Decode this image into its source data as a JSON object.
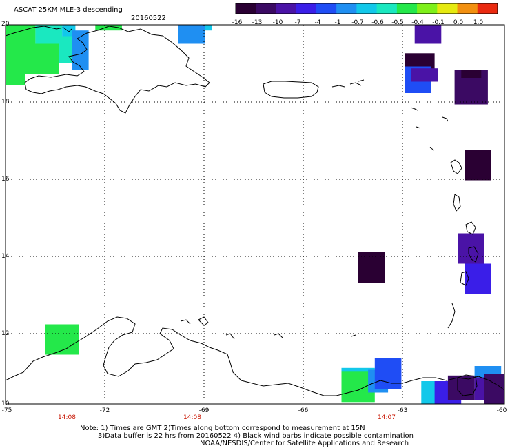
{
  "header": {
    "title": "ASCAT 25KM MLE-3 descending",
    "date": "20160522"
  },
  "colorbar": {
    "labels": [
      "-16",
      "-13",
      "-10",
      "-7",
      "-4",
      "-1",
      "-0.7",
      "-0.6",
      "-0.5",
      "-0.4",
      "-0.1",
      "0.0",
      "1.0"
    ],
    "colors": [
      "#2a0033",
      "#3b0a63",
      "#4a13a6",
      "#3a1ee8",
      "#1f4df5",
      "#1f8ff2",
      "#12c8ea",
      "#1ae8c0",
      "#24e84a",
      "#7ef01a",
      "#e6ea10",
      "#f29010",
      "#ea2a10"
    ]
  },
  "map": {
    "lat_labels": [
      "20",
      "18",
      "16",
      "14",
      "12",
      "10"
    ],
    "lon_labels": [
      "-75",
      "-72",
      "-69",
      "-66",
      "-63",
      "-60"
    ],
    "time_labels": [
      "14:08",
      "14:08",
      "14:07"
    ],
    "cells": [
      {
        "lon0": -75.0,
        "lon1": -74.1,
        "lat0": 19.3,
        "lat1": 20.0,
        "color": "#24e84a"
      },
      {
        "lon0": -74.1,
        "lon1": -73.3,
        "lat0": 19.5,
        "lat1": 20.0,
        "color": "#1ae8c0"
      },
      {
        "lon0": -73.3,
        "lon1": -72.9,
        "lat0": 19.7,
        "lat1": 20.0,
        "color": "#12c8ea"
      },
      {
        "lon0": -75.0,
        "lon1": -74.4,
        "lat0": 18.4,
        "lat1": 19.3,
        "color": "#24e84a"
      },
      {
        "lon0": -74.4,
        "lon1": -73.4,
        "lat0": 18.7,
        "lat1": 19.5,
        "color": "#24e84a"
      },
      {
        "lon0": -73.4,
        "lon1": -73.0,
        "lat0": 19.0,
        "lat1": 19.7,
        "color": "#1ae8c0"
      },
      {
        "lon0": -73.0,
        "lon1": -72.5,
        "lat0": 18.8,
        "lat1": 19.85,
        "color": "#1f8ff2"
      },
      {
        "lon0": -72.3,
        "lon1": -71.5,
        "lat0": 19.85,
        "lat1": 20.0,
        "color": "#24e84a"
      },
      {
        "lon0": -69.8,
        "lon1": -69.0,
        "lat0": 19.5,
        "lat1": 20.0,
        "color": "#1f8ff2"
      },
      {
        "lon0": -69.0,
        "lon1": -68.8,
        "lat0": 19.85,
        "lat1": 20.0,
        "color": "#12c8ea"
      },
      {
        "lon0": -62.7,
        "lon1": -61.9,
        "lat0": 19.5,
        "lat1": 20.0,
        "color": "#4a13a6"
      },
      {
        "lon0": -63.0,
        "lon1": -62.1,
        "lat0": 18.7,
        "lat1": 19.25,
        "color": "#2a0033"
      },
      {
        "lon0": -63.0,
        "lon1": -62.2,
        "lat0": 18.2,
        "lat1": 18.9,
        "color": "#1f4df5"
      },
      {
        "lon0": -62.8,
        "lon1": -62.0,
        "lat0": 18.5,
        "lat1": 18.85,
        "color": "#4a13a6"
      },
      {
        "lon0": -61.5,
        "lon1": -60.5,
        "lat0": 17.9,
        "lat1": 18.8,
        "color": "#3b0a63"
      },
      {
        "lon0": -61.3,
        "lon1": -60.7,
        "lat0": 18.6,
        "lat1": 18.8,
        "color": "#2a0033"
      },
      {
        "lon0": -61.2,
        "lon1": -60.4,
        "lat0": 15.9,
        "lat1": 16.7,
        "color": "#2a0033"
      },
      {
        "lon0": -61.4,
        "lon1": -60.6,
        "lat0": 13.7,
        "lat1": 14.5,
        "color": "#4a13a6"
      },
      {
        "lon0": -61.2,
        "lon1": -60.4,
        "lat0": 12.9,
        "lat1": 13.7,
        "color": "#3a1ee8"
      },
      {
        "lon0": -64.4,
        "lon1": -63.6,
        "lat0": 13.2,
        "lat1": 14.0,
        "color": "#2a0033"
      },
      {
        "lon0": -73.8,
        "lon1": -72.8,
        "lat0": 11.3,
        "lat1": 12.1,
        "color": "#24e84a"
      },
      {
        "lon0": -64.9,
        "lon1": -63.9,
        "lat0": 10.5,
        "lat1": 10.95,
        "color": "#12c8ea"
      },
      {
        "lon0": -64.9,
        "lon1": -63.9,
        "lat0": 10.05,
        "lat1": 10.85,
        "color": "#24e84a"
      },
      {
        "lon0": -64.1,
        "lon1": -63.5,
        "lat0": 10.3,
        "lat1": 10.9,
        "color": "#1f8ff2"
      },
      {
        "lon0": -63.9,
        "lon1": -63.1,
        "lat0": 10.4,
        "lat1": 11.2,
        "color": "#1f4df5"
      },
      {
        "lon0": -62.5,
        "lon1": -61.7,
        "lat0": 10.0,
        "lat1": 10.6,
        "color": "#12c8ea"
      },
      {
        "lon0": -62.1,
        "lon1": -61.3,
        "lat0": 10.0,
        "lat1": 10.6,
        "color": "#3a1ee8"
      },
      {
        "lon0": -61.7,
        "lon1": -60.9,
        "lat0": 10.1,
        "lat1": 10.75,
        "color": "#3b0a63"
      },
      {
        "lon0": -60.9,
        "lon1": -60.1,
        "lat0": 10.7,
        "lat1": 11.0,
        "color": "#1f8ff2"
      },
      {
        "lon0": -60.9,
        "lon1": -60.1,
        "lat0": 10.1,
        "lat1": 10.7,
        "color": "#4a13a6"
      },
      {
        "lon0": -60.6,
        "lon1": -60.0,
        "lat0": 10.0,
        "lat1": 10.8,
        "color": "#3b0a63"
      }
    ]
  },
  "footer": {
    "line1": "Note: 1) Times are GMT 2)Times along bottom correspond to measurement at 15N",
    "line2": "3)Data buffer is 22 hrs from 20160522 4) Black wind barbs indicate possible contamination",
    "line3": "NOAA/NESDIS/Center for Satellite Applications and Research"
  }
}
